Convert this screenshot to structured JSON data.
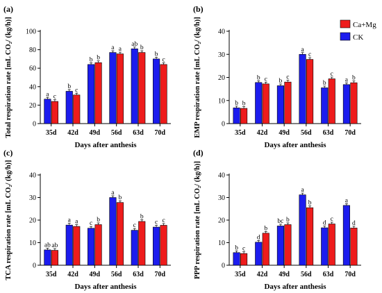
{
  "legend": {
    "entries": [
      {
        "name": "Ca+Mg",
        "color": "#ee1c1c"
      },
      {
        "name": "CK",
        "color": "#1c1cee"
      }
    ]
  },
  "colors": {
    "ca_mg": "#ee1c1c",
    "ck": "#1c1cee",
    "axis": "#000000"
  },
  "chart_data": [
    {
      "type": "bar",
      "panel_label": "(a)",
      "xlabel": "Days after anthesis",
      "ylabel": "Total respiration rate [mL CO₂/ (kg/h)]",
      "categories": [
        "35d",
        "42d",
        "49d",
        "56d",
        "63d",
        "70d"
      ],
      "ylim": [
        0,
        100
      ],
      "yticks": [
        0,
        20,
        40,
        60,
        80,
        100
      ],
      "series": [
        {
          "name": "CK",
          "values": [
            26.5,
            35,
            64,
            77,
            81,
            70
          ],
          "letters": [
            "a",
            "b",
            "b",
            "a",
            "ab",
            "b"
          ]
        },
        {
          "name": "Ca+Mg",
          "values": [
            24,
            31,
            66,
            75.5,
            77,
            64
          ],
          "letters": [
            "c",
            "c",
            "b",
            "a",
            "b",
            "c"
          ]
        }
      ]
    },
    {
      "type": "bar",
      "panel_label": "(b)",
      "xlabel": "Days after anthesis",
      "ylabel": "EMP respiration rate [mL CO₂/ (kg/h)]",
      "categories": [
        "35d",
        "42d",
        "49d",
        "56d",
        "63d",
        "70d"
      ],
      "ylim": [
        0,
        40
      ],
      "yticks": [
        0,
        10,
        20,
        30,
        40
      ],
      "series": [
        {
          "name": "CK",
          "values": [
            6.8,
            17.8,
            16.4,
            30,
            15.5,
            16.9
          ],
          "letters": [
            "b",
            "b",
            "b",
            "a",
            "b",
            "a"
          ]
        },
        {
          "name": "Ca+Mg",
          "values": [
            6.6,
            17.2,
            18,
            27.8,
            19.4,
            17.7
          ],
          "letters": [
            "b",
            "c",
            "c",
            "c",
            "c",
            "b"
          ]
        }
      ]
    },
    {
      "type": "bar",
      "panel_label": "(c)",
      "xlabel": "Days after anthesis",
      "ylabel": "TCA respiration rate [mL CO₂/ (kg/h)]",
      "categories": [
        "35d",
        "42d",
        "49d",
        "56d",
        "63d",
        "70d"
      ],
      "ylim": [
        0,
        40
      ],
      "yticks": [
        0,
        10,
        20,
        30,
        40
      ],
      "series": [
        {
          "name": "CK",
          "values": [
            6.8,
            17.8,
            16.4,
            30,
            15.5,
            16.9
          ],
          "letters": [
            "ab",
            "a",
            "c",
            "a",
            "c",
            "c"
          ]
        },
        {
          "name": "Ca+Mg",
          "values": [
            6.6,
            17.2,
            18,
            27.8,
            19.4,
            17.7
          ],
          "letters": [
            "ab",
            "a",
            "b",
            "b",
            "b",
            "c"
          ]
        }
      ]
    },
    {
      "type": "bar",
      "panel_label": "(d)",
      "xlabel": "Days after anthesis",
      "ylabel": "PPP respiration rate [mL CO₂/ (kg/h)]",
      "categories": [
        "35d",
        "42d",
        "49d",
        "56d",
        "63d",
        "70d"
      ],
      "ylim": [
        0,
        40
      ],
      "yticks": [
        0,
        10,
        20,
        30,
        40
      ],
      "series": [
        {
          "name": "CK",
          "values": [
            5.6,
            10.2,
            17.4,
            31.2,
            16.6,
            26.5
          ],
          "letters": [
            "b",
            "d",
            "bc",
            "a",
            "d",
            "a"
          ]
        },
        {
          "name": "Ca+Mg",
          "values": [
            5.2,
            14.2,
            18,
            25.5,
            18.3,
            16.5
          ],
          "letters": [
            "c",
            "b",
            "b",
            "b",
            "c",
            "d"
          ]
        }
      ]
    }
  ]
}
